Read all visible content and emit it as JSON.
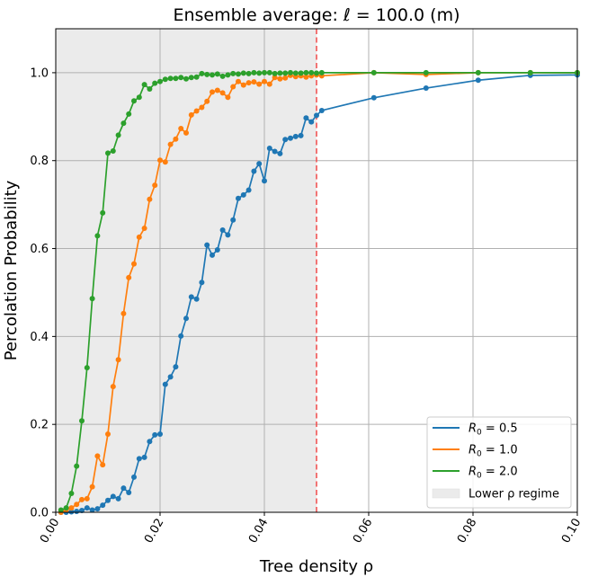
{
  "chart_data": {
    "type": "line",
    "title": "Ensemble average: ℓ = 100.0 (m)",
    "xlabel": "Tree density ρ",
    "ylabel": "Percolation Probability",
    "xlim": [
      0.0,
      0.1
    ],
    "ylim": [
      0.0,
      1.1
    ],
    "x_ticks": [
      "0.00",
      "0.02",
      "0.04",
      "0.06",
      "0.08",
      "0.10"
    ],
    "y_ticks": [
      "0.0",
      "0.2",
      "0.4",
      "0.6",
      "0.8",
      "1.0"
    ],
    "grid": true,
    "legend_position": "lower-right",
    "shaded_region": {
      "label": "Lower ρ regime",
      "x_from": 0.0,
      "x_to": 0.05,
      "color": "#ebebeb"
    },
    "threshold_line": {
      "x": 0.05,
      "color": "#f25555",
      "style": "dashed"
    },
    "series": [
      {
        "name": "R0 = 0.5",
        "legend_label": {
          "prefix": "R",
          "sub": "0",
          "suffix": " =  0.5"
        },
        "color": "#1f77b4",
        "x": [
          0.001,
          0.002,
          0.003,
          0.004,
          0.005,
          0.006,
          0.007,
          0.008,
          0.009,
          0.01,
          0.011,
          0.012,
          0.013,
          0.014,
          0.015,
          0.016,
          0.017,
          0.018,
          0.019,
          0.02,
          0.021,
          0.022,
          0.023,
          0.024,
          0.025,
          0.026,
          0.027,
          0.028,
          0.029,
          0.03,
          0.031,
          0.032,
          0.033,
          0.034,
          0.035,
          0.036,
          0.037,
          0.038,
          0.039,
          0.04,
          0.041,
          0.042,
          0.043,
          0.044,
          0.045,
          0.046,
          0.047,
          0.048,
          0.049,
          0.05,
          0.051,
          0.061,
          0.071,
          0.081,
          0.091,
          0.1
        ],
        "y": [
          0.0,
          0.0,
          0.001,
          0.002,
          0.004,
          0.01,
          0.005,
          0.008,
          0.016,
          0.027,
          0.036,
          0.031,
          0.055,
          0.045,
          0.08,
          0.122,
          0.125,
          0.161,
          0.176,
          0.178,
          0.291,
          0.308,
          0.331,
          0.401,
          0.441,
          0.49,
          0.485,
          0.523,
          0.608,
          0.585,
          0.597,
          0.642,
          0.631,
          0.665,
          0.714,
          0.722,
          0.733,
          0.776,
          0.793,
          0.754,
          0.828,
          0.821,
          0.816,
          0.848,
          0.851,
          0.855,
          0.857,
          0.897,
          0.888,
          0.903,
          0.914,
          0.943,
          0.965,
          0.983,
          0.994,
          0.995
        ]
      },
      {
        "name": "R0 = 1.0",
        "legend_label": {
          "prefix": "R",
          "sub": "0",
          "suffix": " =  1.0"
        },
        "color": "#ff7f0e",
        "x": [
          0.001,
          0.002,
          0.003,
          0.004,
          0.005,
          0.006,
          0.007,
          0.008,
          0.009,
          0.01,
          0.011,
          0.012,
          0.013,
          0.014,
          0.015,
          0.016,
          0.017,
          0.018,
          0.019,
          0.02,
          0.021,
          0.022,
          0.023,
          0.024,
          0.025,
          0.026,
          0.027,
          0.028,
          0.029,
          0.03,
          0.031,
          0.032,
          0.033,
          0.034,
          0.035,
          0.036,
          0.037,
          0.038,
          0.039,
          0.04,
          0.041,
          0.042,
          0.043,
          0.044,
          0.045,
          0.046,
          0.047,
          0.048,
          0.049,
          0.05,
          0.051,
          0.061,
          0.071,
          0.081,
          0.091,
          0.1
        ],
        "y": [
          0.0,
          0.005,
          0.01,
          0.018,
          0.029,
          0.031,
          0.058,
          0.128,
          0.108,
          0.178,
          0.286,
          0.347,
          0.452,
          0.534,
          0.565,
          0.626,
          0.646,
          0.712,
          0.744,
          0.801,
          0.797,
          0.837,
          0.849,
          0.873,
          0.863,
          0.904,
          0.913,
          0.921,
          0.935,
          0.956,
          0.96,
          0.954,
          0.944,
          0.968,
          0.98,
          0.972,
          0.977,
          0.979,
          0.974,
          0.98,
          0.974,
          0.989,
          0.986,
          0.988,
          0.994,
          0.991,
          0.993,
          0.99,
          0.993,
          0.995,
          0.993,
          1.0,
          0.996,
          1.0,
          1.0,
          1.0
        ]
      },
      {
        "name": "R0 = 2.0",
        "legend_label": {
          "prefix": "R",
          "sub": "0",
          "suffix": " =  2.0"
        },
        "color": "#2ca02c",
        "x": [
          0.001,
          0.002,
          0.003,
          0.004,
          0.005,
          0.006,
          0.007,
          0.008,
          0.009,
          0.01,
          0.011,
          0.012,
          0.013,
          0.014,
          0.015,
          0.016,
          0.017,
          0.018,
          0.019,
          0.02,
          0.021,
          0.022,
          0.023,
          0.024,
          0.025,
          0.026,
          0.027,
          0.028,
          0.029,
          0.03,
          0.031,
          0.032,
          0.033,
          0.034,
          0.035,
          0.036,
          0.037,
          0.038,
          0.039,
          0.04,
          0.041,
          0.042,
          0.043,
          0.044,
          0.045,
          0.046,
          0.047,
          0.048,
          0.049,
          0.05,
          0.051,
          0.061,
          0.071,
          0.081,
          0.091,
          0.1
        ],
        "y": [
          0.005,
          0.01,
          0.043,
          0.105,
          0.208,
          0.329,
          0.486,
          0.629,
          0.681,
          0.817,
          0.822,
          0.858,
          0.885,
          0.906,
          0.936,
          0.944,
          0.973,
          0.963,
          0.976,
          0.98,
          0.985,
          0.987,
          0.987,
          0.989,
          0.986,
          0.989,
          0.99,
          0.998,
          0.996,
          0.995,
          0.997,
          0.992,
          0.995,
          0.998,
          0.997,
          0.999,
          0.998,
          1.0,
          0.999,
          1.0,
          1.0,
          0.998,
          0.999,
          0.999,
          1.0,
          0.999,
          0.999,
          1.0,
          1.0,
          0.999,
          1.0,
          1.0,
          1.0,
          1.0,
          1.0,
          1.0
        ]
      }
    ]
  }
}
